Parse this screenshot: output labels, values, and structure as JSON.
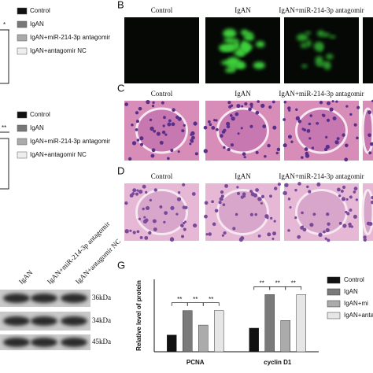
{
  "panel_a": {
    "sig_1": "*",
    "legend_1": [
      "Control",
      "IgAN",
      "IgAN+miR-214-3p antagomir",
      "IgAN+antagomir NC"
    ],
    "sig_2": "**",
    "legend_2": [
      "Control",
      "IgAN",
      "IgAN+miR-214-3p antagomir",
      "IgAN+antagomir NC"
    ]
  },
  "panel_b": {
    "letter": "B",
    "columns": [
      "Control",
      "IgAN",
      "IgAN+miR-214-3p antagomir"
    ]
  },
  "panel_c": {
    "letter": "C",
    "columns": [
      "Control",
      "IgAN",
      "IgAN+miR-214-3p antagomir"
    ]
  },
  "panel_d": {
    "letter": "D",
    "columns": [
      "Control",
      "IgAN",
      "IgAN+miR-214-3p antagomir"
    ]
  },
  "panel_f": {
    "lanes": [
      "IgAN",
      "IgAN+miR-214-3p antagomir",
      "IgAN+antagomir NC"
    ],
    "sizes": [
      "36kDa",
      "34kDa",
      "45kDa"
    ]
  },
  "chart_data": {
    "type": "bar",
    "panel_label": "G",
    "ylabel": "Relative level of protein",
    "categories": [
      "PCNA",
      "cyclin D1"
    ],
    "series": [
      {
        "name": "Control",
        "color": "#111111",
        "values": [
          0.22,
          0.31
        ]
      },
      {
        "name": "IgAN",
        "color": "#7a7a7a",
        "values": [
          0.54,
          0.75
        ]
      },
      {
        "name": "IgAN+mi",
        "color": "#ababab",
        "values": [
          0.35,
          0.41
        ]
      },
      {
        "name": "IgAN+anta",
        "color": "#e6e6e6",
        "values": [
          0.54,
          0.75
        ]
      }
    ],
    "ylim": [
      0,
      0.95
    ],
    "significance": [
      "**",
      "**",
      "**",
      "**",
      "**",
      "**"
    ]
  }
}
